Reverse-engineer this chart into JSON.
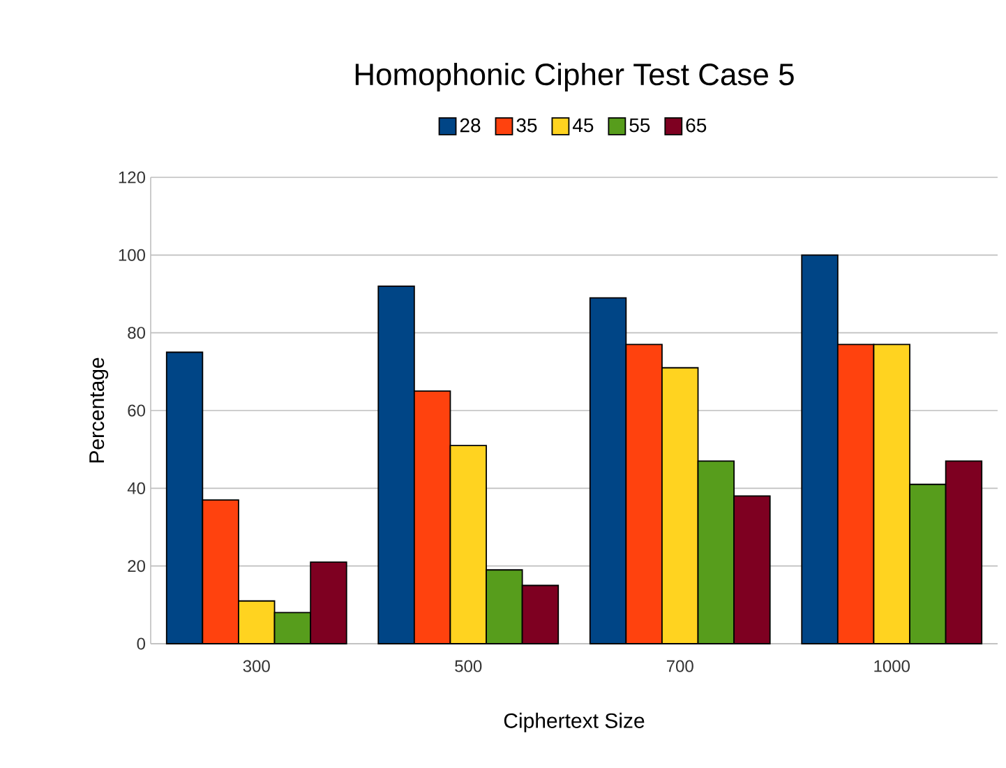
{
  "chart_data": {
    "type": "bar",
    "title": "Homophonic Cipher Test Case 5",
    "xlabel": "Ciphertext Size",
    "ylabel": "Percentage",
    "categories": [
      "300",
      "500",
      "700",
      "1000"
    ],
    "series": [
      {
        "name": "28",
        "color": "#004586",
        "values": [
          75,
          92,
          89,
          100
        ]
      },
      {
        "name": "35",
        "color": "#ff420e",
        "values": [
          37,
          65,
          77,
          77
        ]
      },
      {
        "name": "45",
        "color": "#ffd320",
        "values": [
          11,
          51,
          71,
          77
        ]
      },
      {
        "name": "55",
        "color": "#579d1c",
        "values": [
          8,
          19,
          47,
          41
        ]
      },
      {
        "name": "65",
        "color": "#7e0021",
        "values": [
          21,
          15,
          38,
          47
        ]
      }
    ],
    "ylim": [
      0,
      120
    ],
    "yticks": [
      0,
      20,
      40,
      60,
      80,
      100,
      120
    ],
    "grid": "y",
    "legend": "top"
  }
}
